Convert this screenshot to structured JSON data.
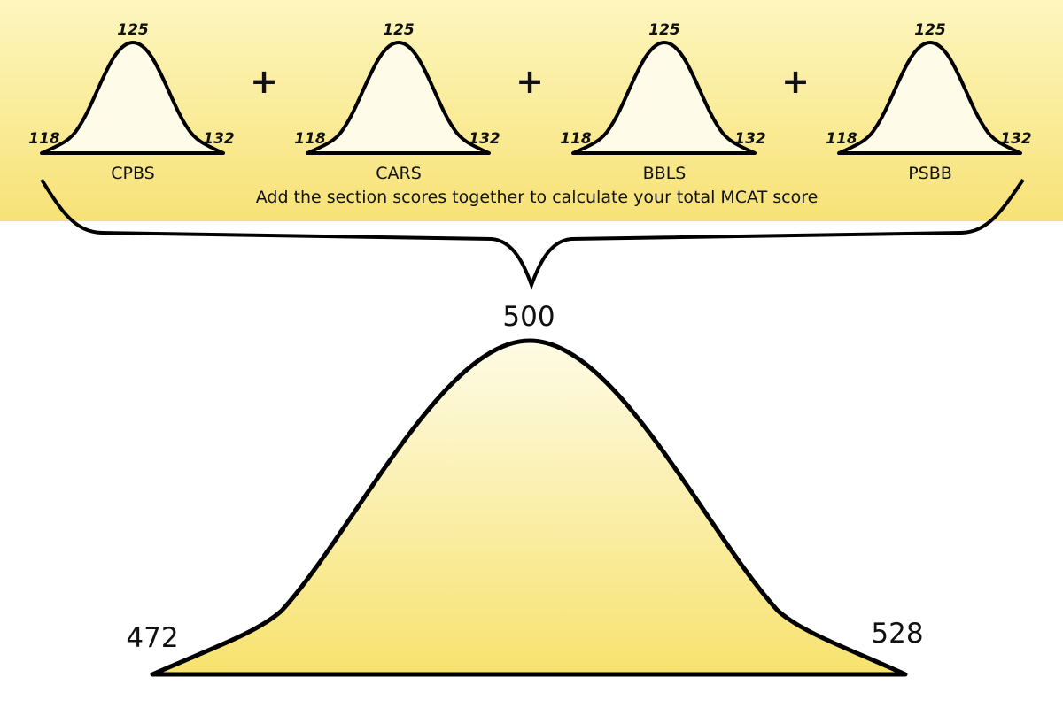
{
  "colors": {
    "band_top": "#fdf6bf",
    "band_bottom": "#f7e277",
    "small_fill": "#fefbe9",
    "big_fill_top": "#fefbe6",
    "big_fill_bottom": "#f7e26e",
    "stroke": "#000000"
  },
  "sections": [
    {
      "name": "CPBS",
      "min": "118",
      "mid": "125",
      "max": "132"
    },
    {
      "name": "CARS",
      "min": "118",
      "mid": "125",
      "max": "132"
    },
    {
      "name": "BBLS",
      "min": "118",
      "mid": "125",
      "max": "132"
    },
    {
      "name": "PSBB",
      "min": "118",
      "mid": "125",
      "max": "132"
    }
  ],
  "operator": "+",
  "caption": "Add the section scores together to calculate your total MCAT score",
  "total": {
    "min": "472",
    "mid": "500",
    "max": "528"
  }
}
